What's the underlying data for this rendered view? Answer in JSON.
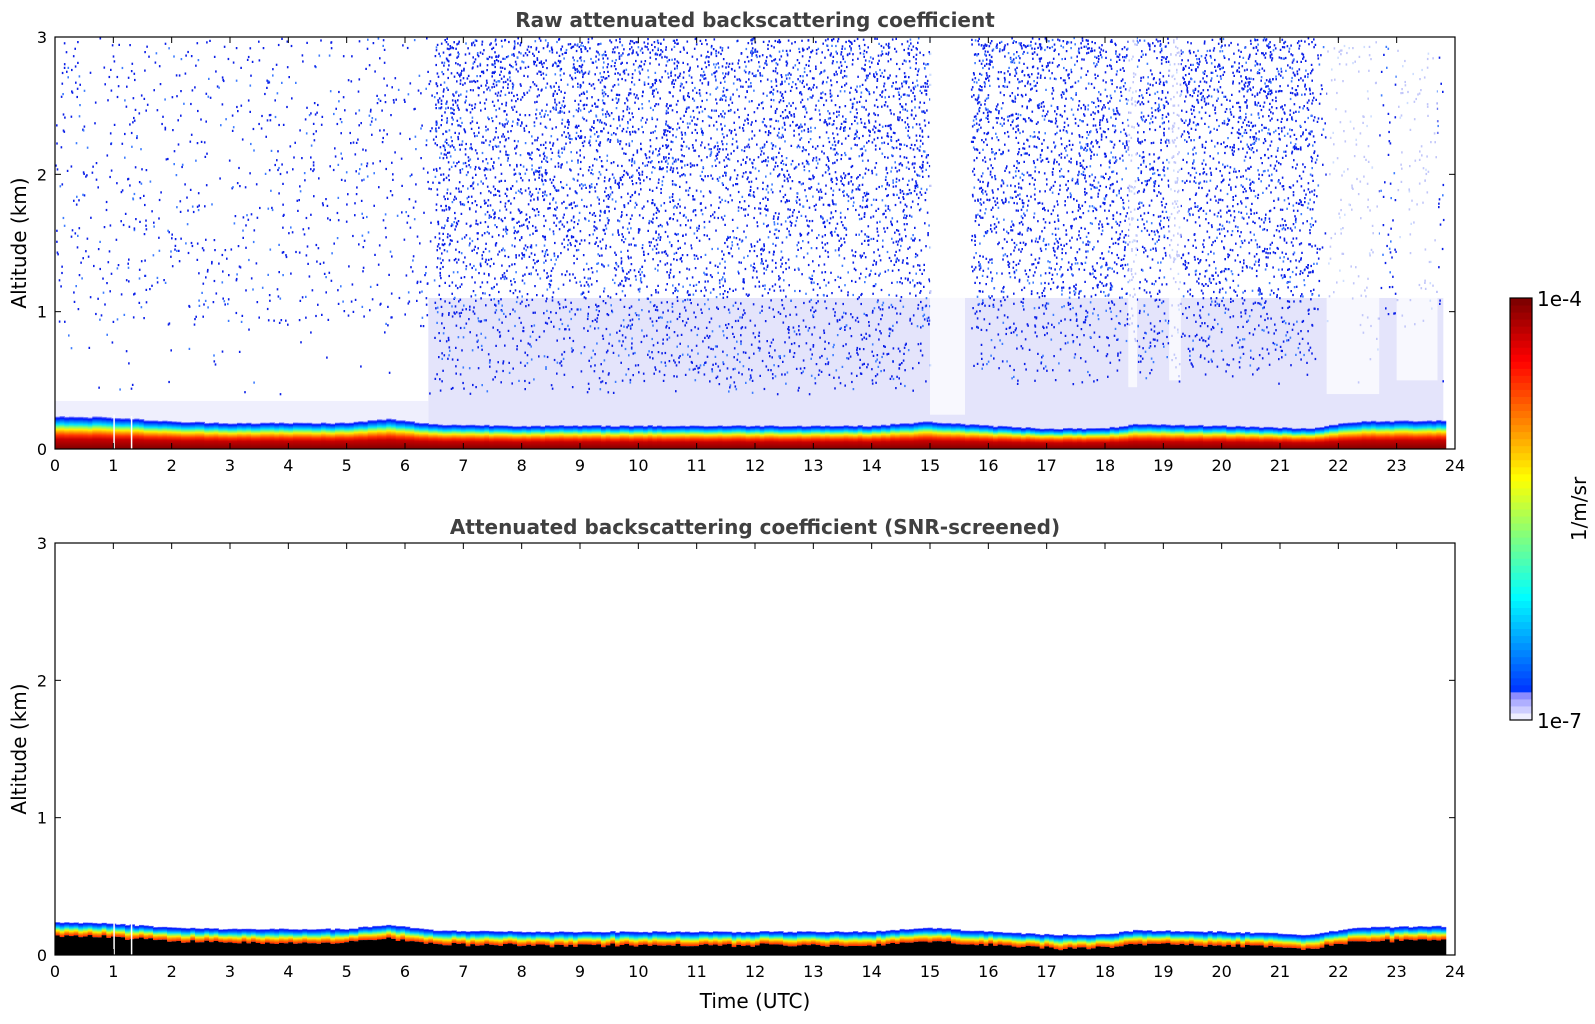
{
  "chart_data": [
    {
      "type": "heatmap",
      "title": "Raw attenuated backscattering coefficient",
      "xlabel": "",
      "ylabel": "Altitude (km)",
      "xlim": [
        0,
        24
      ],
      "ylim": [
        0,
        3
      ],
      "xticks": [
        "0",
        "1",
        "2",
        "3",
        "4",
        "5",
        "6",
        "7",
        "8",
        "9",
        "10",
        "11",
        "12",
        "13",
        "14",
        "15",
        "16",
        "17",
        "18",
        "19",
        "20",
        "21",
        "22",
        "23",
        "24"
      ],
      "yticks": [
        "0",
        "1",
        "2",
        "3"
      ],
      "data_end_time_utc": 23.8,
      "surface_layer_top_km": [
        {
          "x": 0,
          "y": 0.24
        },
        {
          "x": 1,
          "y": 0.23
        },
        {
          "x": 2,
          "y": 0.2
        },
        {
          "x": 3,
          "y": 0.19
        },
        {
          "x": 4,
          "y": 0.19
        },
        {
          "x": 5,
          "y": 0.19
        },
        {
          "x": 5.7,
          "y": 0.22
        },
        {
          "x": 6.5,
          "y": 0.18
        },
        {
          "x": 8,
          "y": 0.17
        },
        {
          "x": 10,
          "y": 0.17
        },
        {
          "x": 12,
          "y": 0.17
        },
        {
          "x": 14,
          "y": 0.17
        },
        {
          "x": 15,
          "y": 0.2
        },
        {
          "x": 16,
          "y": 0.17
        },
        {
          "x": 17,
          "y": 0.15
        },
        {
          "x": 18,
          "y": 0.15
        },
        {
          "x": 18.5,
          "y": 0.18
        },
        {
          "x": 20,
          "y": 0.17
        },
        {
          "x": 21.5,
          "y": 0.15
        },
        {
          "x": 22.3,
          "y": 0.2
        },
        {
          "x": 23.8,
          "y": 0.21
        }
      ],
      "high_noise_regions": [
        {
          "x_start": 6.5,
          "x_end": 15.0,
          "y_start_km": 1.0,
          "intensity": "high"
        },
        {
          "x_start": 15.7,
          "x_end": 21.6,
          "y_start_km": 1.2,
          "intensity": "high"
        },
        {
          "x_start": 0.0,
          "x_end": 6.5,
          "y_start_km": 1.0,
          "intensity": "sparse"
        },
        {
          "x_start": 21.6,
          "x_end": 23.8,
          "y_start_km": 1.2,
          "intensity": "sparse"
        }
      ]
    },
    {
      "type": "heatmap",
      "title": "Attenuated backscattering coefficient (SNR-screened)",
      "xlabel": "Time (UTC)",
      "ylabel": "Altitude (km)",
      "xlim": [
        0,
        24
      ],
      "ylim": [
        0,
        3
      ],
      "xticks": [
        "0",
        "1",
        "2",
        "3",
        "4",
        "5",
        "6",
        "7",
        "8",
        "9",
        "10",
        "11",
        "12",
        "13",
        "14",
        "15",
        "16",
        "17",
        "18",
        "19",
        "20",
        "21",
        "22",
        "23",
        "24"
      ],
      "yticks": [
        "0",
        "1",
        "2",
        "3"
      ],
      "data_end_time_utc": 23.8,
      "surface_layer_top_km": [
        {
          "x": 0,
          "y": 0.24
        },
        {
          "x": 1,
          "y": 0.23
        },
        {
          "x": 2,
          "y": 0.2
        },
        {
          "x": 3,
          "y": 0.19
        },
        {
          "x": 4,
          "y": 0.19
        },
        {
          "x": 5,
          "y": 0.19
        },
        {
          "x": 5.7,
          "y": 0.22
        },
        {
          "x": 6.5,
          "y": 0.18
        },
        {
          "x": 8,
          "y": 0.17
        },
        {
          "x": 10,
          "y": 0.17
        },
        {
          "x": 12,
          "y": 0.17
        },
        {
          "x": 14,
          "y": 0.17
        },
        {
          "x": 15,
          "y": 0.2
        },
        {
          "x": 16,
          "y": 0.17
        },
        {
          "x": 17,
          "y": 0.15
        },
        {
          "x": 18,
          "y": 0.15
        },
        {
          "x": 18.5,
          "y": 0.18
        },
        {
          "x": 20,
          "y": 0.17
        },
        {
          "x": 21.5,
          "y": 0.15
        },
        {
          "x": 22.3,
          "y": 0.2
        },
        {
          "x": 23.8,
          "y": 0.21
        }
      ],
      "masked_below_km": 0.1
    }
  ],
  "colorbar": {
    "label": "1/m/sr",
    "max_label": "1e-4",
    "min_label": "1e-7",
    "colormap": "jet",
    "scale": "log"
  },
  "colors": {
    "background": "#ffffff",
    "noise_blue": "#0a1fe8",
    "noise_light": "#3c7cff",
    "haze": "#e4e4fb",
    "masked": "#000000",
    "title_gray": "#404040"
  }
}
